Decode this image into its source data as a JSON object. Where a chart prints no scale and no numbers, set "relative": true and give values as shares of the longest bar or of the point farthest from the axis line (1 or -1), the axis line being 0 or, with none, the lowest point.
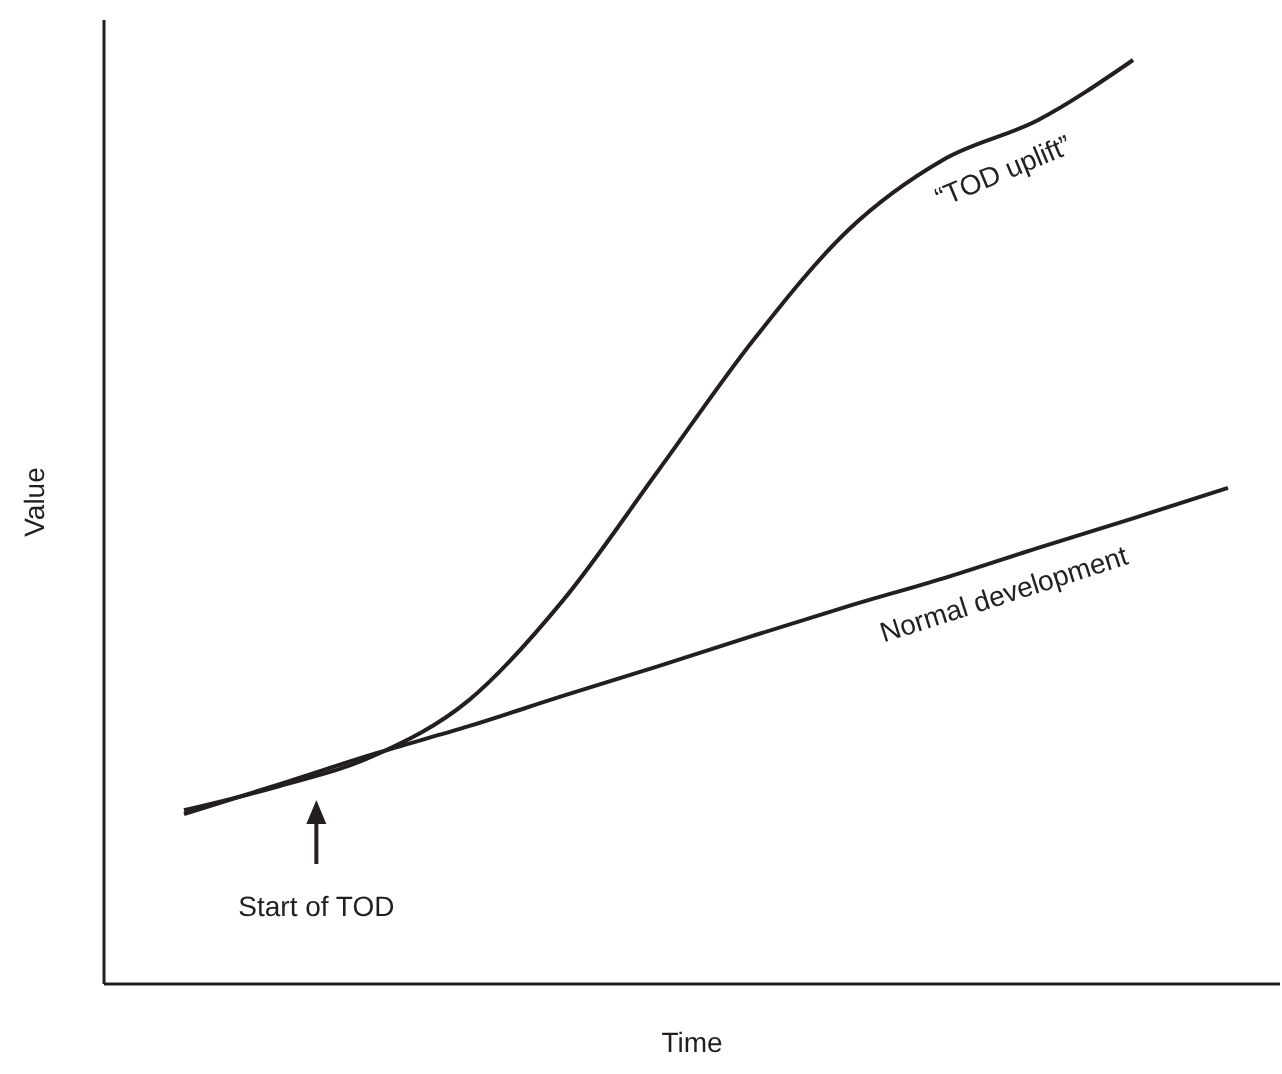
{
  "chart_data": {
    "type": "line",
    "relative": true,
    "xlabel": "Time",
    "ylabel": "Value",
    "categories": [
      null,
      null,
      null,
      null,
      null,
      null,
      null,
      null,
      null,
      null,
      null,
      null
    ],
    "series": [
      {
        "name": "“TOD uplift”",
        "color": "#231f20",
        "values": [
          0.188,
          0.214,
          0.247,
          0.307,
          0.416,
          0.556,
          0.697,
          0.816,
          0.892,
          0.935,
          1,
          null
        ]
      },
      {
        "name": "Normal development",
        "color": "#231f20",
        "values": [
          0.184,
          0.216,
          0.249,
          0.279,
          0.312,
          0.344,
          0.377,
          0.409,
          0.439,
          0.472,
          0.504,
          0.537
        ]
      }
    ],
    "annotations": [
      "Start of TOD"
    ],
    "marker": "none",
    "line_style": "solid"
  }
}
